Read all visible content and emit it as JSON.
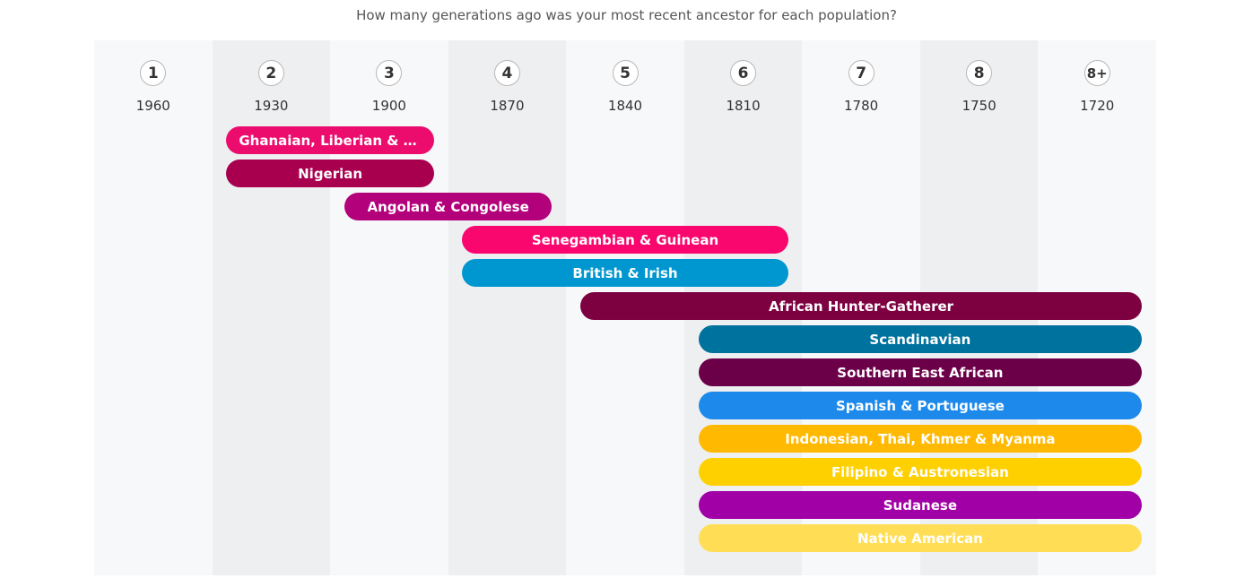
{
  "title": "How many generations ago was your most recent ancestor for each population?",
  "colors": {
    "column_light": "#f7f8f9",
    "column_dark": "#eeeff0"
  },
  "chart_data": {
    "type": "timeline-range-bars",
    "title": "How many generations ago was your most recent ancestor for each population?",
    "generations": [
      {
        "generation": "1",
        "year": "1960"
      },
      {
        "generation": "2",
        "year": "1930"
      },
      {
        "generation": "3",
        "year": "1900"
      },
      {
        "generation": "4",
        "year": "1870"
      },
      {
        "generation": "5",
        "year": "1840"
      },
      {
        "generation": "6",
        "year": "1810"
      },
      {
        "generation": "7",
        "year": "1780"
      },
      {
        "generation": "8",
        "year": "1750"
      },
      {
        "generation": "8+",
        "year": "1720"
      }
    ],
    "populations": [
      {
        "name": "Ghanaian, Liberian & Sierra Leonean",
        "label": "Ghanaian, Liberian & Sierra Leon…",
        "start_generation": 2,
        "end_generation": 3,
        "color": "#ec0c6e"
      },
      {
        "name": "Nigerian",
        "label": "Nigerian",
        "start_generation": 2,
        "end_generation": 3,
        "color": "#a8004f"
      },
      {
        "name": "Angolan & Congolese",
        "label": "Angolan & Congolese",
        "start_generation": 3,
        "end_generation": 4,
        "color": "#b3007b"
      },
      {
        "name": "Senegambian & Guinean",
        "label": "Senegambian & Guinean",
        "start_generation": 4,
        "end_generation": 6,
        "color": "#f9066e"
      },
      {
        "name": "British & Irish",
        "label": "British & Irish",
        "start_generation": 4,
        "end_generation": 6,
        "color": "#0097d0"
      },
      {
        "name": "African Hunter-Gatherer",
        "label": "African Hunter-Gatherer",
        "start_generation": 5,
        "end_generation": 9,
        "color": "#7d0040"
      },
      {
        "name": "Scandinavian",
        "label": "Scandinavian",
        "start_generation": 6,
        "end_generation": 9,
        "color": "#00729e"
      },
      {
        "name": "Southern East African",
        "label": "Southern East African",
        "start_generation": 6,
        "end_generation": 9,
        "color": "#6b0048"
      },
      {
        "name": "Spanish & Portuguese",
        "label": "Spanish & Portuguese",
        "start_generation": 6,
        "end_generation": 9,
        "color": "#1d8aeb"
      },
      {
        "name": "Indonesian, Thai, Khmer & Myanma",
        "label": "Indonesian, Thai, Khmer & Myanma",
        "start_generation": 6,
        "end_generation": 9,
        "color": "#ffb900"
      },
      {
        "name": "Filipino & Austronesian",
        "label": "Filipino & Austronesian",
        "start_generation": 6,
        "end_generation": 9,
        "color": "#ffd000"
      },
      {
        "name": "Sudanese",
        "label": "Sudanese",
        "start_generation": 6,
        "end_generation": 9,
        "color": "#a100a6"
      },
      {
        "name": "Native American",
        "label": "Native American",
        "start_generation": 6,
        "end_generation": 9,
        "color": "#ffde55"
      }
    ]
  }
}
